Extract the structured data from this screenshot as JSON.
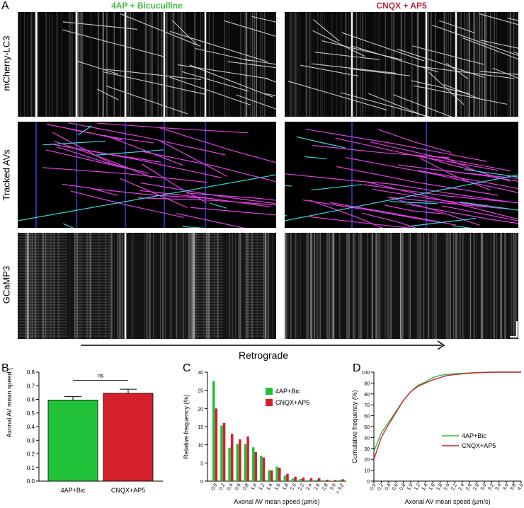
{
  "panel_labels": {
    "a": "A",
    "b": "B",
    "c": "C",
    "d": "D"
  },
  "panel_a": {
    "conditions": [
      {
        "name": "4AP + Bicuculline",
        "color": "#3fbf3f"
      },
      {
        "name": "CNQX + AP5",
        "color": "#b3283a"
      }
    ],
    "row_labels": [
      "mCherry-LC3",
      "Tracked AVs",
      "GCaMP3"
    ],
    "direction_label": "Retrograde",
    "track_colors": {
      "retrograde": "#e63ee6",
      "anterograde": "#35d6d6",
      "stationary": "#4455ff"
    }
  },
  "chart_data": [
    {
      "id": "B",
      "type": "bar",
      "categories": [
        "4AP+Bic",
        "CNQX+AP5"
      ],
      "values": [
        0.595,
        0.645
      ],
      "errors": [
        0.025,
        0.03
      ],
      "colors": [
        "#22c33a",
        "#d3202b"
      ],
      "ylabel": "Axonal AV mean speed (µm/sec)",
      "ylim": [
        0,
        0.8
      ],
      "yticks": [
        "0.0",
        "0.1",
        "0.2",
        "0.3",
        "0.4",
        "0.5",
        "0.6",
        "0.7",
        "0.8"
      ],
      "significance": "ns"
    },
    {
      "id": "C",
      "type": "bar",
      "xlabel": "Axonal AV mean speed (µm/s)",
      "ylabel": "Relative frequency (%)",
      "ylim": [
        0,
        30
      ],
      "yticks": [
        "0",
        "5",
        "10",
        "15",
        "20",
        "25",
        "30"
      ],
      "categories": [
        "0.0",
        "0.2",
        "0.4",
        "0.6",
        "0.8",
        "1.0",
        "1.2",
        "1.4",
        "1.6",
        "1.8",
        "2.0",
        "2.2",
        "2.4",
        "2.6",
        "2.8",
        "3.0",
        "> 3.2"
      ],
      "series": [
        {
          "name": "4AP+Bic",
          "color": "#22c33a",
          "values": [
            27.5,
            15.3,
            9.2,
            10.2,
            10.2,
            9.3,
            7.0,
            3.0,
            4.0,
            1.5,
            0.7,
            0.6,
            0.3,
            0.4,
            0.2,
            0.1,
            0.3
          ]
        },
        {
          "name": "CNQX+AP5",
          "color": "#d3202b",
          "values": [
            20.0,
            16.0,
            13.0,
            11.5,
            12.3,
            8.0,
            6.5,
            3.0,
            3.7,
            2.0,
            1.2,
            1.0,
            0.8,
            0.8,
            0.4,
            0.3,
            0.5
          ]
        }
      ]
    },
    {
      "id": "D",
      "type": "line",
      "xlabel": "Axonal AV mean speed (µm/s)",
      "ylabel": "Cumulative frequency (%)",
      "xlim": [
        0,
        4.0
      ],
      "ylim": [
        0,
        100
      ],
      "xticks": [
        "0.0",
        "0.2",
        "0.4",
        "0.6",
        "0.8",
        "1.0",
        "1.2",
        "1.4",
        "1.6",
        "1.8",
        "2.0",
        "2.2",
        "2.4",
        "2.6",
        "2.8",
        "3.0",
        "3.2",
        "3.4",
        "3.6",
        "3.8",
        "4.0"
      ],
      "yticks": [
        "0",
        "10",
        "20",
        "30",
        "40",
        "50",
        "60",
        "70",
        "80",
        "90",
        "100"
      ],
      "series": [
        {
          "name": "4AP+Bic",
          "color": "#22c33a",
          "x": [
            0,
            0.1,
            0.2,
            0.4,
            0.6,
            0.8,
            1.0,
            1.2,
            1.4,
            1.6,
            1.8,
            2.0,
            2.4,
            2.8,
            3.2,
            4.0
          ],
          "y": [
            27,
            36,
            44,
            54,
            64,
            74,
            82,
            88,
            91,
            95,
            97,
            98,
            99,
            99.6,
            100,
            100
          ]
        },
        {
          "name": "CNQX+AP5",
          "color": "#d3202b",
          "x": [
            0,
            0.1,
            0.2,
            0.4,
            0.6,
            0.8,
            1.0,
            1.2,
            1.4,
            1.6,
            1.8,
            2.0,
            2.4,
            2.8,
            3.2,
            4.0
          ],
          "y": [
            20,
            30,
            40,
            52,
            63,
            74,
            82,
            87,
            90,
            93,
            95,
            97,
            98.5,
            99.5,
            100,
            100
          ]
        }
      ]
    }
  ]
}
